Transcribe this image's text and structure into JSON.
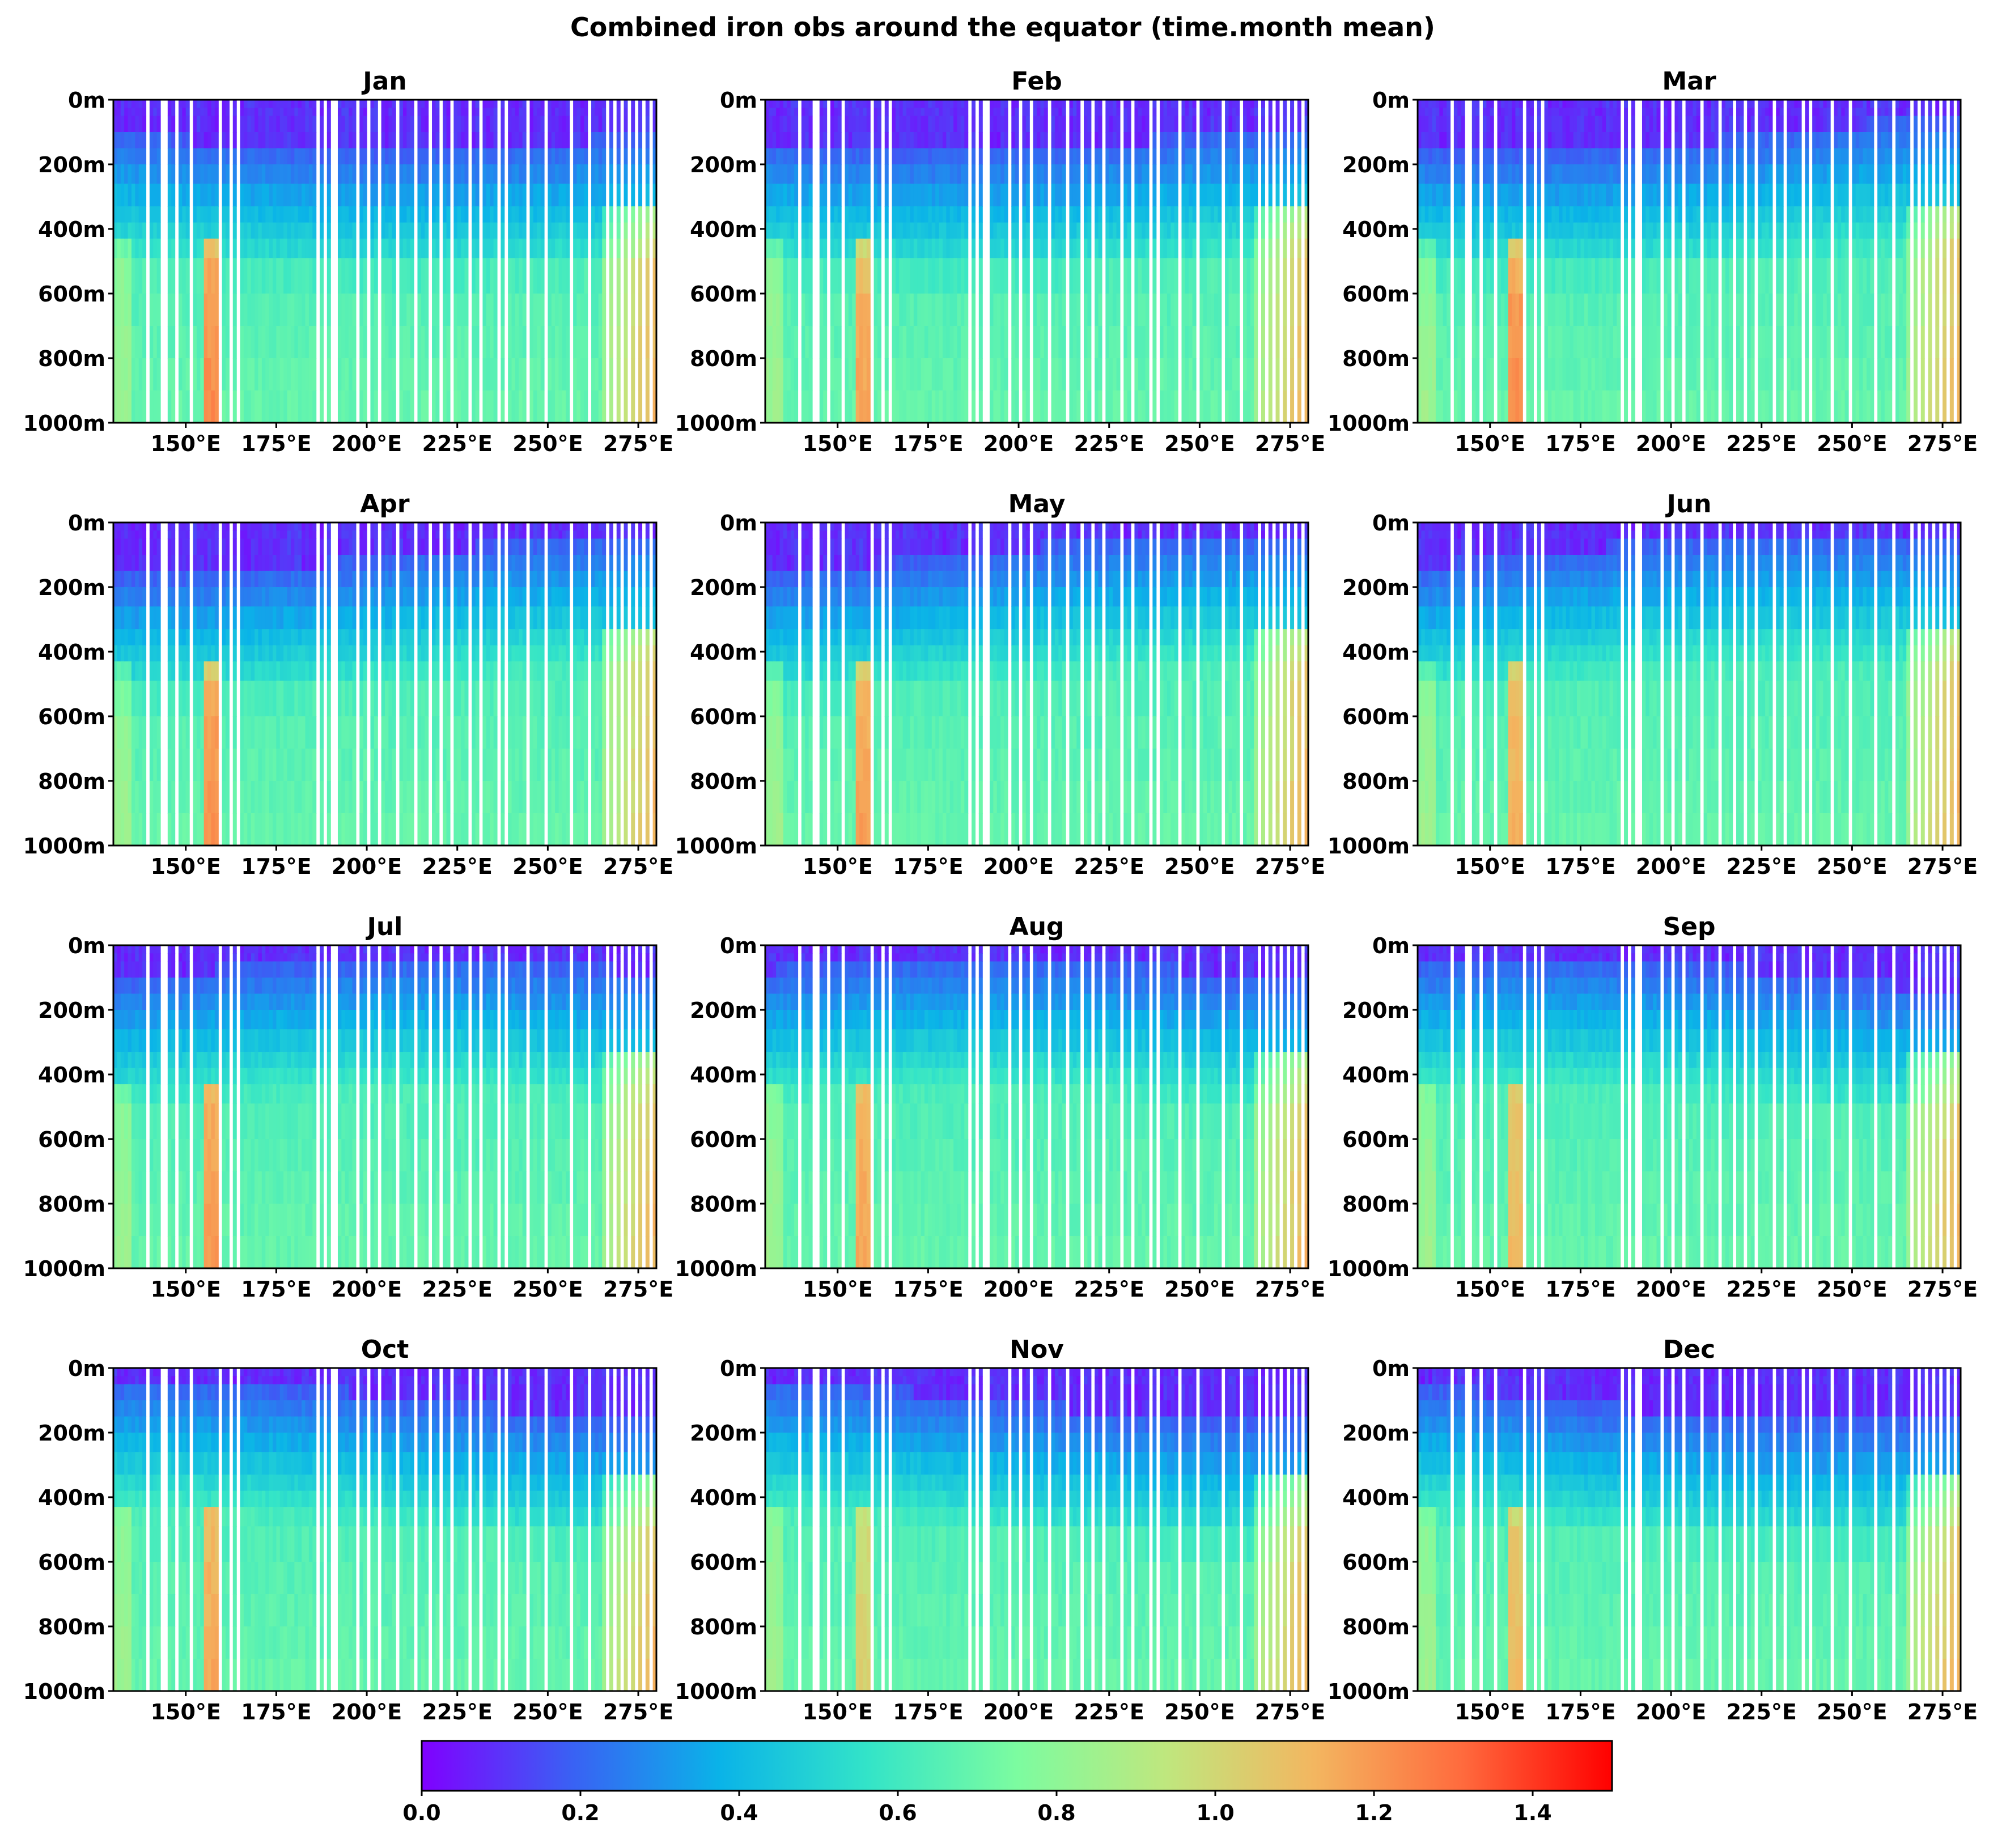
{
  "chart_data": {
    "type": "heatmap",
    "title": "Combined iron obs around the equator (time.month mean)",
    "panels": [
      {
        "title": "Jan"
      },
      {
        "title": "Feb"
      },
      {
        "title": "Mar"
      },
      {
        "title": "Apr"
      },
      {
        "title": "May"
      },
      {
        "title": "Jun"
      },
      {
        "title": "Jul"
      },
      {
        "title": "Aug"
      },
      {
        "title": "Sep"
      },
      {
        "title": "Oct"
      },
      {
        "title": "Nov"
      },
      {
        "title": "Dec"
      }
    ],
    "x": {
      "label": "",
      "range": [
        130,
        280
      ],
      "ticks": [
        150,
        175,
        200,
        225,
        250,
        275
      ],
      "tick_labels": [
        "150°E",
        "175°E",
        "200°E",
        "225°E",
        "250°E",
        "275°E"
      ]
    },
    "y": {
      "label": "",
      "range": [
        0,
        1000
      ],
      "inverted": true,
      "ticks": [
        0,
        200,
        400,
        600,
        800,
        1000
      ],
      "tick_labels": [
        "0m",
        "200m",
        "400m",
        "600m",
        "800m",
        "1000m"
      ]
    },
    "depth_levels": [
      0,
      25,
      50,
      100,
      150,
      200,
      260,
      330,
      380,
      430,
      490,
      600,
      700,
      800,
      900,
      1000
    ],
    "colorbar": {
      "range": [
        0,
        1.5
      ],
      "ticks": [
        0.0,
        0.2,
        0.4,
        0.6,
        0.8,
        1.0,
        1.2,
        1.4
      ],
      "tick_labels": [
        "0.0",
        "0.2",
        "0.4",
        "0.6",
        "0.8",
        "1.0",
        "1.2",
        "1.4"
      ],
      "colormap": "rainbow",
      "colors": [
        "#8000ff",
        "#3a60f4",
        "#0ab3e8",
        "#33e4c8",
        "#7cfca0",
        "#bfe77e",
        "#f3b660",
        "#ff6a3d",
        "#ff0000"
      ]
    },
    "grid": false,
    "missing_longitudes": [
      139,
      143,
      144,
      147,
      151,
      159,
      162,
      164,
      186,
      188,
      190,
      191,
      197,
      200,
      203,
      208,
      213,
      217,
      220,
      223,
      228,
      231,
      236,
      238,
      244,
      249,
      256,
      261,
      266,
      268,
      270,
      272,
      274,
      276,
      278
    ],
    "features": {
      "western_high_band": [
        155,
        160
      ],
      "eastern_high_band": [
        265,
        278
      ]
    }
  }
}
